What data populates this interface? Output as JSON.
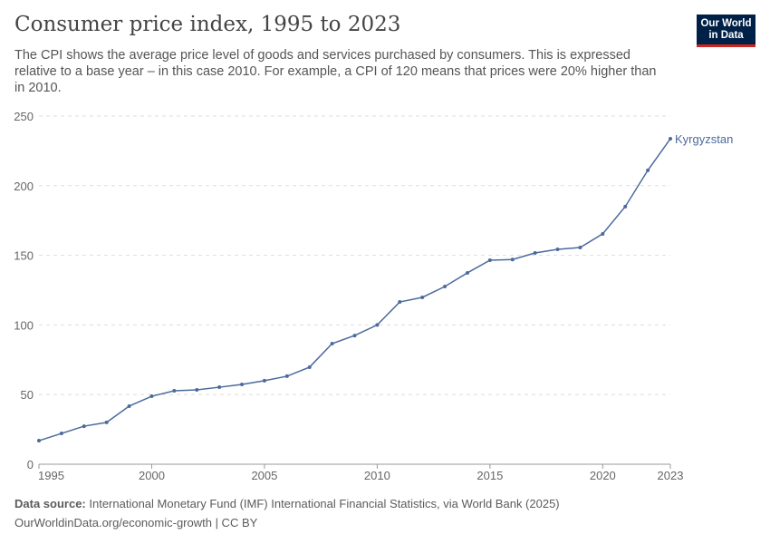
{
  "header": {
    "title": "Consumer price index, 1995 to 2023",
    "subtitle": "The CPI shows the average price level of goods and services purchased by consumers. This is expressed relative to a base year – in this case 2010. For example, a CPI of 120 means that prices were 20% higher than in 2010.",
    "logo": "Our World in Data"
  },
  "chart_data": {
    "type": "line",
    "title": "Consumer price index, 1995 to 2023",
    "x": [
      1995,
      1996,
      1997,
      1998,
      1999,
      2000,
      2001,
      2002,
      2003,
      2004,
      2005,
      2006,
      2007,
      2008,
      2009,
      2010,
      2011,
      2012,
      2013,
      2014,
      2015,
      2016,
      2017,
      2018,
      2019,
      2020,
      2021,
      2022,
      2023
    ],
    "series": [
      {
        "name": "Kyrgyzstan",
        "color": "#4c6a9c",
        "values": [
          16.9,
          22.1,
          27.3,
          30,
          41.7,
          48.8,
          52.7,
          53.4,
          55.3,
          57.3,
          60,
          63.2,
          69.7,
          86.6,
          92.4,
          100,
          116.5,
          119.8,
          127.6,
          137.4,
          146.5,
          147,
          151.7,
          154.3,
          155.6,
          165.4,
          185,
          211,
          233.7
        ]
      }
    ],
    "xlim": [
      1995,
      2023
    ],
    "ylim": [
      0,
      250
    ],
    "xticks": [
      "1995",
      "2000",
      "2005",
      "2010",
      "2015",
      "2020",
      "2023"
    ],
    "yticks": [
      "0",
      "50",
      "100",
      "150",
      "200",
      "250"
    ],
    "grid": "horizontal dashed",
    "legend": "inline-end-label"
  },
  "footer": {
    "source_label": "Data source:",
    "source": " International Monetary Fund (IMF) International Financial Statistics, via World Bank (2025)",
    "url": "OurWorldinData.org/economic-growth | CC BY"
  }
}
